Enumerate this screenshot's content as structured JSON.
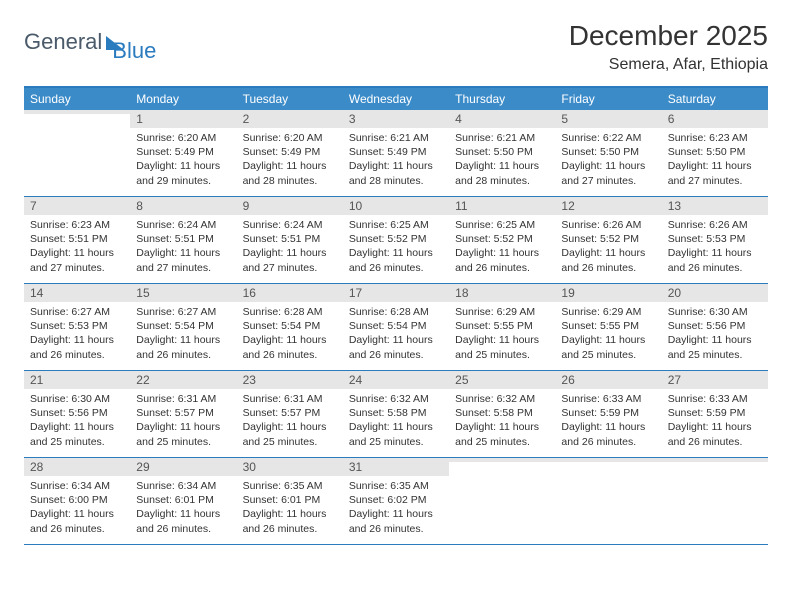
{
  "logo": {
    "text1": "General",
    "text2": "Blue"
  },
  "title": "December 2025",
  "location": "Semera, Afar, Ethiopia",
  "colors": {
    "header_bg": "#3b8bc9",
    "border": "#2b7bbf",
    "daynum_bg": "#e6e6e6",
    "text": "#333333",
    "logo_gray": "#4a5a6a"
  },
  "dayNames": [
    "Sunday",
    "Monday",
    "Tuesday",
    "Wednesday",
    "Thursday",
    "Friday",
    "Saturday"
  ],
  "weeks": [
    [
      {
        "num": "",
        "sunrise": "",
        "sunset": "",
        "daylight1": "",
        "daylight2": ""
      },
      {
        "num": "1",
        "sunrise": "Sunrise: 6:20 AM",
        "sunset": "Sunset: 5:49 PM",
        "daylight1": "Daylight: 11 hours",
        "daylight2": "and 29 minutes."
      },
      {
        "num": "2",
        "sunrise": "Sunrise: 6:20 AM",
        "sunset": "Sunset: 5:49 PM",
        "daylight1": "Daylight: 11 hours",
        "daylight2": "and 28 minutes."
      },
      {
        "num": "3",
        "sunrise": "Sunrise: 6:21 AM",
        "sunset": "Sunset: 5:49 PM",
        "daylight1": "Daylight: 11 hours",
        "daylight2": "and 28 minutes."
      },
      {
        "num": "4",
        "sunrise": "Sunrise: 6:21 AM",
        "sunset": "Sunset: 5:50 PM",
        "daylight1": "Daylight: 11 hours",
        "daylight2": "and 28 minutes."
      },
      {
        "num": "5",
        "sunrise": "Sunrise: 6:22 AM",
        "sunset": "Sunset: 5:50 PM",
        "daylight1": "Daylight: 11 hours",
        "daylight2": "and 27 minutes."
      },
      {
        "num": "6",
        "sunrise": "Sunrise: 6:23 AM",
        "sunset": "Sunset: 5:50 PM",
        "daylight1": "Daylight: 11 hours",
        "daylight2": "and 27 minutes."
      }
    ],
    [
      {
        "num": "7",
        "sunrise": "Sunrise: 6:23 AM",
        "sunset": "Sunset: 5:51 PM",
        "daylight1": "Daylight: 11 hours",
        "daylight2": "and 27 minutes."
      },
      {
        "num": "8",
        "sunrise": "Sunrise: 6:24 AM",
        "sunset": "Sunset: 5:51 PM",
        "daylight1": "Daylight: 11 hours",
        "daylight2": "and 27 minutes."
      },
      {
        "num": "9",
        "sunrise": "Sunrise: 6:24 AM",
        "sunset": "Sunset: 5:51 PM",
        "daylight1": "Daylight: 11 hours",
        "daylight2": "and 27 minutes."
      },
      {
        "num": "10",
        "sunrise": "Sunrise: 6:25 AM",
        "sunset": "Sunset: 5:52 PM",
        "daylight1": "Daylight: 11 hours",
        "daylight2": "and 26 minutes."
      },
      {
        "num": "11",
        "sunrise": "Sunrise: 6:25 AM",
        "sunset": "Sunset: 5:52 PM",
        "daylight1": "Daylight: 11 hours",
        "daylight2": "and 26 minutes."
      },
      {
        "num": "12",
        "sunrise": "Sunrise: 6:26 AM",
        "sunset": "Sunset: 5:52 PM",
        "daylight1": "Daylight: 11 hours",
        "daylight2": "and 26 minutes."
      },
      {
        "num": "13",
        "sunrise": "Sunrise: 6:26 AM",
        "sunset": "Sunset: 5:53 PM",
        "daylight1": "Daylight: 11 hours",
        "daylight2": "and 26 minutes."
      }
    ],
    [
      {
        "num": "14",
        "sunrise": "Sunrise: 6:27 AM",
        "sunset": "Sunset: 5:53 PM",
        "daylight1": "Daylight: 11 hours",
        "daylight2": "and 26 minutes."
      },
      {
        "num": "15",
        "sunrise": "Sunrise: 6:27 AM",
        "sunset": "Sunset: 5:54 PM",
        "daylight1": "Daylight: 11 hours",
        "daylight2": "and 26 minutes."
      },
      {
        "num": "16",
        "sunrise": "Sunrise: 6:28 AM",
        "sunset": "Sunset: 5:54 PM",
        "daylight1": "Daylight: 11 hours",
        "daylight2": "and 26 minutes."
      },
      {
        "num": "17",
        "sunrise": "Sunrise: 6:28 AM",
        "sunset": "Sunset: 5:54 PM",
        "daylight1": "Daylight: 11 hours",
        "daylight2": "and 26 minutes."
      },
      {
        "num": "18",
        "sunrise": "Sunrise: 6:29 AM",
        "sunset": "Sunset: 5:55 PM",
        "daylight1": "Daylight: 11 hours",
        "daylight2": "and 25 minutes."
      },
      {
        "num": "19",
        "sunrise": "Sunrise: 6:29 AM",
        "sunset": "Sunset: 5:55 PM",
        "daylight1": "Daylight: 11 hours",
        "daylight2": "and 25 minutes."
      },
      {
        "num": "20",
        "sunrise": "Sunrise: 6:30 AM",
        "sunset": "Sunset: 5:56 PM",
        "daylight1": "Daylight: 11 hours",
        "daylight2": "and 25 minutes."
      }
    ],
    [
      {
        "num": "21",
        "sunrise": "Sunrise: 6:30 AM",
        "sunset": "Sunset: 5:56 PM",
        "daylight1": "Daylight: 11 hours",
        "daylight2": "and 25 minutes."
      },
      {
        "num": "22",
        "sunrise": "Sunrise: 6:31 AM",
        "sunset": "Sunset: 5:57 PM",
        "daylight1": "Daylight: 11 hours",
        "daylight2": "and 25 minutes."
      },
      {
        "num": "23",
        "sunrise": "Sunrise: 6:31 AM",
        "sunset": "Sunset: 5:57 PM",
        "daylight1": "Daylight: 11 hours",
        "daylight2": "and 25 minutes."
      },
      {
        "num": "24",
        "sunrise": "Sunrise: 6:32 AM",
        "sunset": "Sunset: 5:58 PM",
        "daylight1": "Daylight: 11 hours",
        "daylight2": "and 25 minutes."
      },
      {
        "num": "25",
        "sunrise": "Sunrise: 6:32 AM",
        "sunset": "Sunset: 5:58 PM",
        "daylight1": "Daylight: 11 hours",
        "daylight2": "and 25 minutes."
      },
      {
        "num": "26",
        "sunrise": "Sunrise: 6:33 AM",
        "sunset": "Sunset: 5:59 PM",
        "daylight1": "Daylight: 11 hours",
        "daylight2": "and 26 minutes."
      },
      {
        "num": "27",
        "sunrise": "Sunrise: 6:33 AM",
        "sunset": "Sunset: 5:59 PM",
        "daylight1": "Daylight: 11 hours",
        "daylight2": "and 26 minutes."
      }
    ],
    [
      {
        "num": "28",
        "sunrise": "Sunrise: 6:34 AM",
        "sunset": "Sunset: 6:00 PM",
        "daylight1": "Daylight: 11 hours",
        "daylight2": "and 26 minutes."
      },
      {
        "num": "29",
        "sunrise": "Sunrise: 6:34 AM",
        "sunset": "Sunset: 6:01 PM",
        "daylight1": "Daylight: 11 hours",
        "daylight2": "and 26 minutes."
      },
      {
        "num": "30",
        "sunrise": "Sunrise: 6:35 AM",
        "sunset": "Sunset: 6:01 PM",
        "daylight1": "Daylight: 11 hours",
        "daylight2": "and 26 minutes."
      },
      {
        "num": "31",
        "sunrise": "Sunrise: 6:35 AM",
        "sunset": "Sunset: 6:02 PM",
        "daylight1": "Daylight: 11 hours",
        "daylight2": "and 26 minutes."
      },
      {
        "num": "",
        "sunrise": "",
        "sunset": "",
        "daylight1": "",
        "daylight2": ""
      },
      {
        "num": "",
        "sunrise": "",
        "sunset": "",
        "daylight1": "",
        "daylight2": ""
      },
      {
        "num": "",
        "sunrise": "",
        "sunset": "",
        "daylight1": "",
        "daylight2": ""
      }
    ]
  ]
}
